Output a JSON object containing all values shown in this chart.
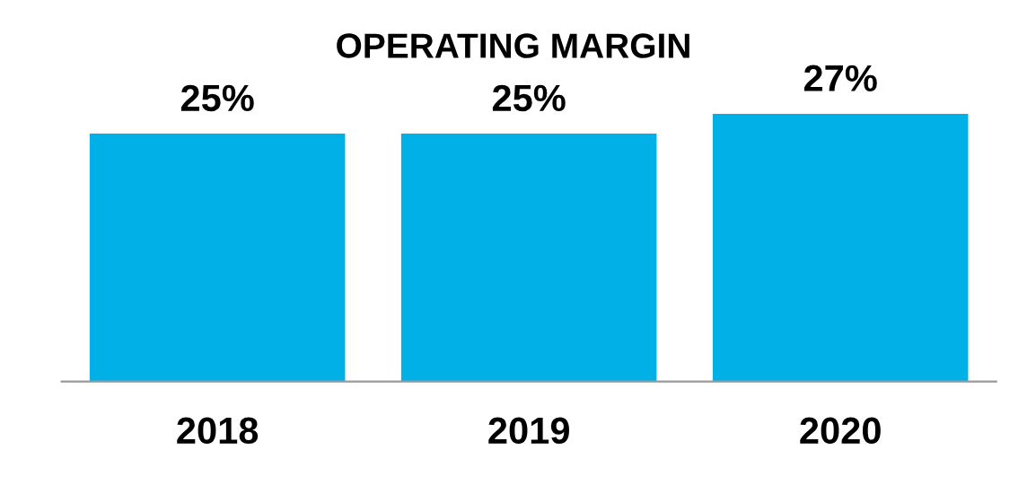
{
  "chart_data": {
    "type": "bar",
    "title": "OPERATING MARGIN",
    "categories": [
      "2018",
      "2019",
      "2020"
    ],
    "values": [
      25,
      25,
      27
    ],
    "color": "#00b0e6",
    "value_labels": [
      "25%",
      "25%",
      "27%"
    ],
    "grid": false
  }
}
